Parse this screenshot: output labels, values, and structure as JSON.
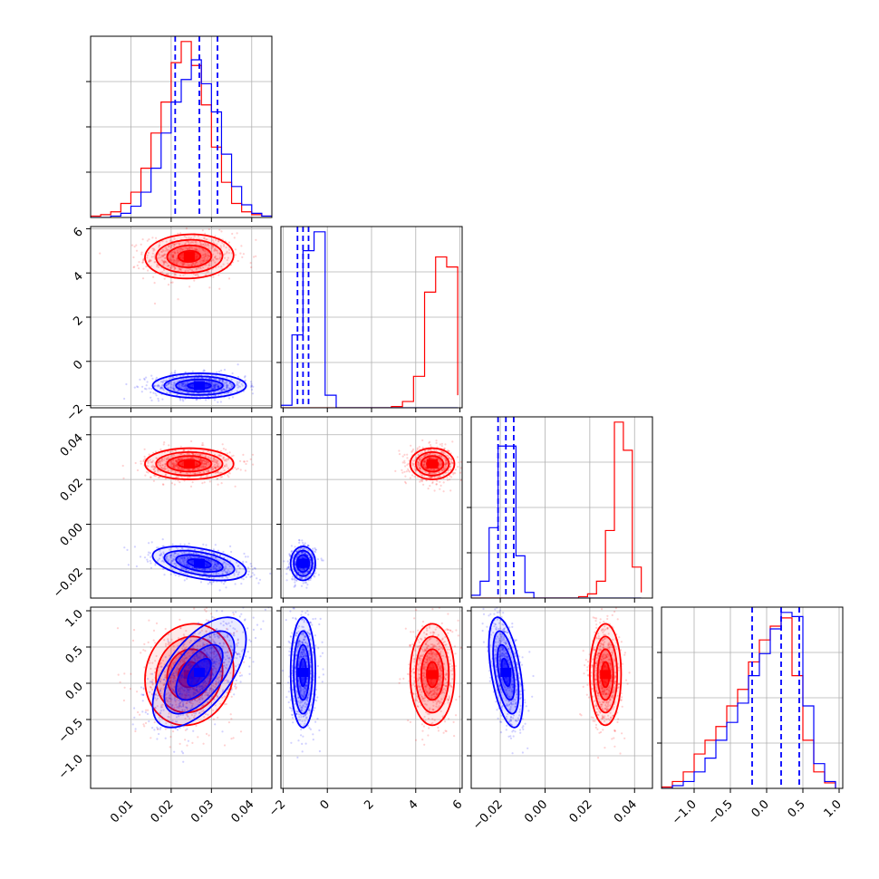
{
  "chart_data": {
    "type": "corner",
    "grid": true,
    "series": [
      {
        "name": "",
        "color": "#ff0000"
      },
      {
        "name": "",
        "color": "#0000ff"
      }
    ],
    "parameters": [
      {
        "id": "p1",
        "range": [
          0.0,
          0.045
        ],
        "ticks": [
          0.01,
          0.02,
          0.03,
          0.04
        ],
        "tick_labels": [
          "0.01",
          "0.02",
          "0.03",
          "0.04"
        ]
      },
      {
        "id": "p2",
        "range": [
          -2.1,
          6.1
        ],
        "ticks": [
          -2,
          0,
          2,
          4,
          6
        ],
        "tick_labels": [
          "−2",
          "0",
          "2",
          "4",
          "6"
        ]
      },
      {
        "id": "p3",
        "range": [
          -0.033,
          0.048
        ],
        "ticks": [
          -0.02,
          0.0,
          0.02,
          0.04
        ],
        "tick_labels": [
          "−0.02",
          "0.00",
          "0.02",
          "0.04"
        ]
      },
      {
        "id": "p4",
        "range": [
          -1.45,
          1.05
        ],
        "ticks": [
          -1.0,
          -0.5,
          0.0,
          0.5,
          1.0
        ],
        "tick_labels": [
          "−1.0",
          "−0.5",
          "0.0",
          "0.5",
          "1.0"
        ]
      }
    ],
    "marginals": [
      {
        "param": "p1",
        "blue_quantiles": [
          0.021,
          0.027,
          0.0315
        ],
        "red": {
          "bins": [
            0.0,
            0.0025,
            0.005,
            0.0075,
            0.01,
            0.0125,
            0.015,
            0.0175,
            0.02,
            0.0225,
            0.025,
            0.0275,
            0.03,
            0.0325,
            0.035,
            0.0375,
            0.04,
            0.0425,
            0.045
          ],
          "counts": [
            1,
            2,
            4,
            10,
            18,
            35,
            60,
            82,
            110,
            125,
            108,
            80,
            50,
            25,
            10,
            4,
            2,
            1
          ]
        },
        "blue": {
          "bins": [
            0.0,
            0.0025,
            0.005,
            0.0075,
            0.01,
            0.0125,
            0.015,
            0.0175,
            0.02,
            0.0225,
            0.025,
            0.0275,
            0.03,
            0.0325,
            0.035,
            0.0375,
            0.04,
            0.0425,
            0.045
          ],
          "counts": [
            0,
            0,
            1,
            3,
            8,
            18,
            35,
            60,
            82,
            98,
            112,
            95,
            75,
            45,
            22,
            9,
            3,
            1
          ]
        }
      },
      {
        "param": "p2",
        "blue_quantiles": [
          -1.35,
          -1.1,
          -0.85
        ],
        "red": {
          "bins": [
            -2.1,
            -1.6,
            -1.1,
            -0.6,
            -0.1,
            0.4,
            0.9,
            1.4,
            1.9,
            2.4,
            2.9,
            3.4,
            3.9,
            4.4,
            4.9,
            5.4,
            5.9
          ],
          "counts": [
            0,
            0,
            0,
            0,
            0,
            0,
            0,
            0,
            0,
            0,
            1,
            5,
            25,
            92,
            120,
            112,
            10
          ]
        },
        "blue": {
          "bins": [
            -2.1,
            -1.6,
            -1.1,
            -0.6,
            -0.1,
            0.4,
            0.9,
            1.4,
            1.9,
            2.4,
            2.9,
            3.4,
            3.9,
            4.4,
            4.9,
            5.4,
            5.9
          ],
          "counts": [
            2,
            58,
            125,
            140,
            10,
            0,
            0,
            0,
            0,
            0,
            0,
            0,
            0,
            0,
            0,
            0,
            0
          ]
        }
      },
      {
        "param": "p3",
        "blue_quantiles": [
          -0.021,
          -0.0175,
          -0.014
        ],
        "red": {
          "bins": [
            -0.033,
            -0.029,
            -0.025,
            -0.021,
            -0.017,
            -0.013,
            -0.009,
            -0.005,
            -0.001,
            0.003,
            0.007,
            0.011,
            0.015,
            0.019,
            0.023,
            0.027,
            0.031,
            0.035,
            0.039,
            0.043
          ],
          "counts": [
            0,
            0,
            0,
            0,
            0,
            0,
            0,
            0,
            0,
            0,
            0,
            0,
            1,
            3,
            12,
            48,
            125,
            105,
            22,
            4
          ]
        },
        "blue": {
          "bins": [
            -0.033,
            -0.029,
            -0.025,
            -0.021,
            -0.017,
            -0.013,
            -0.009,
            -0.005,
            -0.001,
            0.003,
            0.007,
            0.011,
            0.015,
            0.019,
            0.023,
            0.027,
            0.031,
            0.035,
            0.039,
            0.043
          ],
          "counts": [
            2,
            12,
            50,
            108,
            108,
            30,
            4,
            0,
            0,
            0,
            0,
            0,
            0,
            0,
            0,
            0,
            0,
            0,
            0,
            0
          ]
        }
      },
      {
        "param": "p4",
        "blue_quantiles": [
          -0.2,
          0.2,
          0.45
        ],
        "red": {
          "bins": [
            -1.45,
            -1.3,
            -1.15,
            -1.0,
            -0.85,
            -0.7,
            -0.55,
            -0.4,
            -0.25,
            -0.1,
            0.05,
            0.2,
            0.35,
            0.5,
            0.65,
            0.8,
            0.95
          ],
          "counts": [
            1,
            5,
            12,
            25,
            35,
            45,
            60,
            72,
            92,
            108,
            118,
            124,
            82,
            35,
            12,
            4
          ]
        },
        "blue": {
          "bins": [
            -1.45,
            -1.3,
            -1.15,
            -1.0,
            -0.85,
            -0.7,
            -0.55,
            -0.4,
            -0.25,
            -0.1,
            0.05,
            0.2,
            0.35,
            0.5,
            0.65,
            0.8,
            0.95
          ],
          "counts": [
            0,
            2,
            5,
            12,
            22,
            35,
            48,
            62,
            82,
            98,
            116,
            128,
            125,
            60,
            18,
            5
          ]
        }
      }
    ],
    "joint_clusters": [
      {
        "x": "p1",
        "y": "p2",
        "red": {
          "mean": [
            0.0245,
            4.75
          ],
          "sd": [
            0.0055,
            0.5
          ],
          "rho": 0.05
        },
        "blue": {
          "mean": [
            0.027,
            -1.1
          ],
          "sd": [
            0.0058,
            0.28
          ],
          "rho": 0.0
        }
      },
      {
        "x": "p1",
        "y": "p3",
        "red": {
          "mean": [
            0.0245,
            0.027
          ],
          "sd": [
            0.0055,
            0.0035
          ],
          "rho": 0.0
        },
        "blue": {
          "mean": [
            0.027,
            -0.0175
          ],
          "sd": [
            0.0058,
            0.0038
          ],
          "rho": -0.45
        }
      },
      {
        "x": "p2",
        "y": "p3",
        "red": {
          "mean": [
            4.75,
            0.027
          ],
          "sd": [
            0.5,
            0.0035
          ],
          "rho": 0.0
        },
        "blue": {
          "mean": [
            -1.1,
            -0.0175
          ],
          "sd": [
            0.28,
            0.0038
          ],
          "rho": 0.0
        }
      },
      {
        "x": "p1",
        "y": "p4",
        "red": {
          "mean": [
            0.0245,
            0.12
          ],
          "sd": [
            0.0055,
            0.35
          ],
          "rho": 0.1
        },
        "blue": {
          "mean": [
            0.027,
            0.15
          ],
          "sd": [
            0.0058,
            0.38
          ],
          "rho": 0.6
        }
      },
      {
        "x": "p2",
        "y": "p4",
        "red": {
          "mean": [
            4.75,
            0.12
          ],
          "sd": [
            0.5,
            0.35
          ],
          "rho": 0.0
        },
        "blue": {
          "mean": [
            -1.1,
            0.15
          ],
          "sd": [
            0.28,
            0.38
          ],
          "rho": 0.0
        }
      },
      {
        "x": "p3",
        "y": "p4",
        "red": {
          "mean": [
            0.027,
            0.12
          ],
          "sd": [
            0.0035,
            0.35
          ],
          "rho": 0.0
        },
        "blue": {
          "mean": [
            -0.0175,
            0.15
          ],
          "sd": [
            0.0038,
            0.38
          ],
          "rho": -0.5
        }
      }
    ]
  }
}
